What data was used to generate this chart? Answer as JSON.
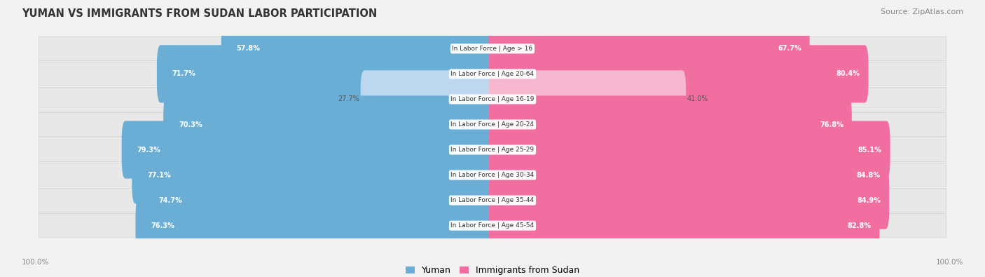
{
  "title": "Yuman vs Immigrants from Sudan Labor Participation",
  "source": "Source: ZipAtlas.com",
  "categories": [
    "In Labor Force | Age > 16",
    "In Labor Force | Age 20-64",
    "In Labor Force | Age 16-19",
    "In Labor Force | Age 20-24",
    "In Labor Force | Age 25-29",
    "In Labor Force | Age 30-34",
    "In Labor Force | Age 35-44",
    "In Labor Force | Age 45-54"
  ],
  "yuman_values": [
    57.8,
    71.7,
    27.7,
    70.3,
    79.3,
    77.1,
    74.7,
    76.3
  ],
  "sudan_values": [
    67.7,
    80.4,
    41.0,
    76.8,
    85.1,
    84.8,
    84.9,
    82.8
  ],
  "yuman_color_strong": "#6aaed6",
  "yuman_color_light": "#bdd7ee",
  "sudan_color_strong": "#f06fa0",
  "sudan_color_light": "#f5b8cf",
  "bg_color": "#f2f2f2",
  "row_bg_light": "#e8e8e8",
  "row_bg_white": "#fafafa",
  "axis_label": "100.0%",
  "legend_yuman": "Yuman",
  "legend_sudan": "Immigrants from Sudan",
  "light_threshold": 45
}
